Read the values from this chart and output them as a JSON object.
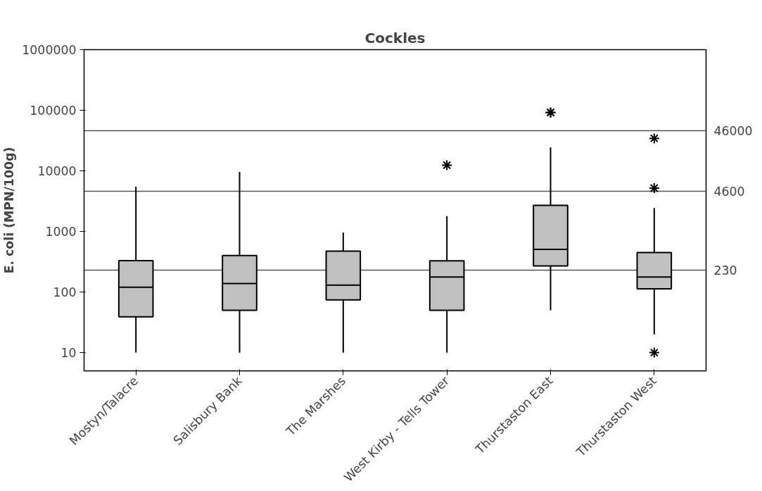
{
  "chart_data": {
    "type": "box",
    "title": "Cockles",
    "ylabel": "E. coli (MPN/100g)",
    "categories": [
      "Mostyn/Talacre",
      "Salisbury Bank",
      "The Marshes",
      "West Kirby - Tells Tower",
      "Thurstaston East",
      "Thurstaston West"
    ],
    "boxes": [
      {
        "low": 10,
        "q1": 39,
        "median": 120,
        "q3": 330,
        "high": 5500
      },
      {
        "low": 10,
        "q1": 50,
        "median": 138,
        "q3": 400,
        "high": 9600
      },
      {
        "low": 10,
        "q1": 74,
        "median": 130,
        "q3": 474,
        "high": 960
      },
      {
        "low": 10,
        "q1": 50,
        "median": 177,
        "q3": 327,
        "high": 1790,
        "outliers": [
          12400
        ]
      },
      {
        "low": 50,
        "q1": 270,
        "median": 505,
        "q3": 2700,
        "high": 24400,
        "outliers": [
          92000,
          92000
        ]
      },
      {
        "low": 20,
        "q1": 113,
        "median": 177,
        "q3": 450,
        "high": 2440,
        "outliers": [
          34400,
          5200,
          10
        ]
      }
    ],
    "color": "#c0c0c0",
    "log": true,
    "ylim": [
      5,
      1000000
    ],
    "yticks": [
      10,
      100,
      1000,
      10000,
      100000,
      1000000
    ],
    "ref_lines": [
      {
        "axis": "y",
        "value": 46000,
        "label": "46000",
        "color": "#555555"
      },
      {
        "axis": "y",
        "value": 4600,
        "label": "4600",
        "color": "#555555"
      },
      {
        "axis": "y",
        "value": 230,
        "label": "230",
        "color": "#555555"
      }
    ],
    "grid": false
  }
}
